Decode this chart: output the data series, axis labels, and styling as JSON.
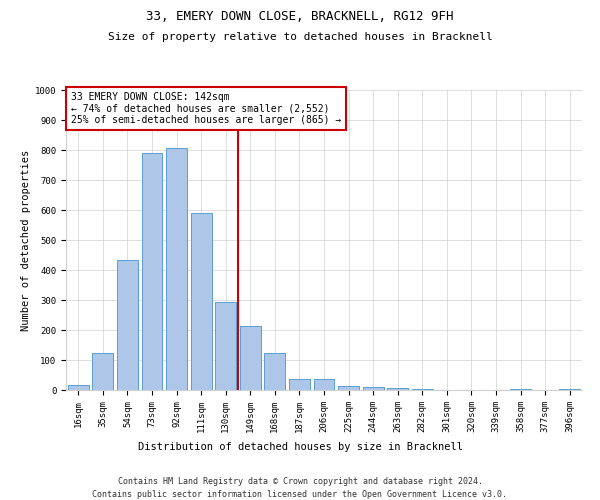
{
  "title": "33, EMERY DOWN CLOSE, BRACKNELL, RG12 9FH",
  "subtitle": "Size of property relative to detached houses in Bracknell",
  "xlabel": "Distribution of detached houses by size in Bracknell",
  "ylabel": "Number of detached properties",
  "categories": [
    "16sqm",
    "35sqm",
    "54sqm",
    "73sqm",
    "92sqm",
    "111sqm",
    "130sqm",
    "149sqm",
    "168sqm",
    "187sqm",
    "206sqm",
    "225sqm",
    "244sqm",
    "263sqm",
    "282sqm",
    "301sqm",
    "320sqm",
    "339sqm",
    "358sqm",
    "377sqm",
    "396sqm"
  ],
  "values": [
    18,
    122,
    435,
    790,
    808,
    590,
    293,
    212,
    125,
    38,
    38,
    12,
    10,
    8,
    5,
    0,
    0,
    0,
    5,
    0,
    5
  ],
  "bar_color": "#aec6e8",
  "bar_edge_color": "#5a9fd4",
  "vline_color": "#cc0000",
  "ylim": [
    0,
    1000
  ],
  "yticks": [
    0,
    100,
    200,
    300,
    400,
    500,
    600,
    700,
    800,
    900,
    1000
  ],
  "annotation_text": "33 EMERY DOWN CLOSE: 142sqm\n← 74% of detached houses are smaller (2,552)\n25% of semi-detached houses are larger (865) →",
  "annotation_box_color": "#cc0000",
  "footer_line1": "Contains HM Land Registry data © Crown copyright and database right 2024.",
  "footer_line2": "Contains public sector information licensed under the Open Government Licence v3.0.",
  "bg_color": "#ffffff",
  "grid_color": "#d0d0d0",
  "title_fontsize": 9,
  "subtitle_fontsize": 8,
  "tick_fontsize": 6.5,
  "ylabel_fontsize": 7.5,
  "xlabel_fontsize": 7.5,
  "annotation_fontsize": 7,
  "footer_fontsize": 6
}
